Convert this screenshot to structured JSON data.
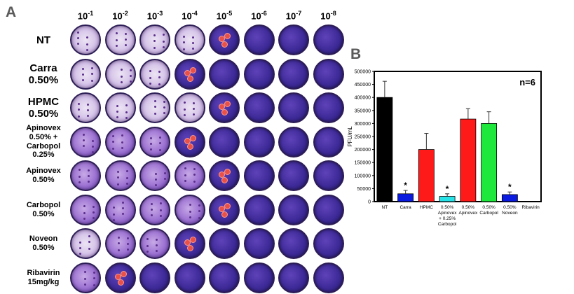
{
  "panel_a": {
    "letter": "A",
    "dilutions": [
      {
        "base": "10",
        "exp": "-1"
      },
      {
        "base": "10",
        "exp": "-2"
      },
      {
        "base": "10",
        "exp": "-3"
      },
      {
        "base": "10",
        "exp": "-4"
      },
      {
        "base": "10",
        "exp": "-5"
      },
      {
        "base": "10",
        "exp": "-6"
      },
      {
        "base": "10",
        "exp": "-7"
      },
      {
        "base": "10",
        "exp": "-8"
      }
    ],
    "rows": [
      {
        "label_lines": [
          "NT"
        ],
        "style": "big",
        "plates": [
          "clear",
          "clear",
          "clear",
          "clear",
          "dense-marked",
          "dense",
          "dense",
          "dense"
        ]
      },
      {
        "label_lines": [
          "Carra",
          "0.50%"
        ],
        "style": "big",
        "plates": [
          "clear",
          "clear",
          "clear",
          "dense-marked",
          "dense",
          "dense",
          "dense",
          "dense"
        ]
      },
      {
        "label_lines": [
          "HPMC",
          "0.50%"
        ],
        "style": "big",
        "plates": [
          "clear",
          "clear",
          "clear",
          "clear",
          "dense-marked",
          "dense",
          "dense",
          "dense"
        ]
      },
      {
        "label_lines": [
          "Apinovex",
          "0.50% +",
          "Carbopol",
          "0.25%"
        ],
        "style": "small",
        "plates": [
          "mixed",
          "mixed",
          "mixed",
          "dense-marked",
          "dense",
          "dense",
          "dense",
          "dense"
        ]
      },
      {
        "label_lines": [
          "Apinovex",
          "0.50%"
        ],
        "style": "small",
        "plates": [
          "mixed",
          "mixed",
          "mixed",
          "mixed",
          "dense-marked",
          "dense",
          "dense",
          "dense"
        ]
      },
      {
        "label_lines": [
          "Carbopol",
          "0.50%"
        ],
        "style": "small",
        "plates": [
          "mixed",
          "mixed",
          "mixed",
          "mixed",
          "dense-marked",
          "dense",
          "dense",
          "dense"
        ]
      },
      {
        "label_lines": [
          "Noveon",
          "0.50%"
        ],
        "style": "small",
        "plates": [
          "clear",
          "mixed",
          "mixed",
          "dense-marked",
          "dense",
          "dense",
          "dense",
          "dense"
        ]
      },
      {
        "label_lines": [
          "Ribavirin",
          "15mg/kg"
        ],
        "style": "small",
        "plates": [
          "mixed",
          "dense-marked",
          "dense",
          "dense",
          "dense",
          "dense",
          "dense",
          "dense"
        ]
      }
    ]
  },
  "panel_b": {
    "letter": "B"
  },
  "chart_data": {
    "type": "bar",
    "annotation": "n=6",
    "ylabel": "PFU/mL",
    "ylim": [
      0,
      500000
    ],
    "yticks": [
      0,
      50000,
      100000,
      150000,
      200000,
      250000,
      300000,
      350000,
      400000,
      450000,
      500000
    ],
    "categories": [
      [
        "NT"
      ],
      [
        "Carra"
      ],
      [
        "HPMC"
      ],
      [
        "0.50%",
        "Apinovex",
        "+ 0.25%",
        "Carbopol"
      ],
      [
        "0.50%",
        "Apinovex"
      ],
      [
        "0.50%",
        "Carbopol"
      ],
      [
        "0.50%",
        "Noveon"
      ],
      [
        "Ribavirin"
      ]
    ],
    "values": [
      400000,
      30000,
      200000,
      20000,
      317000,
      300000,
      27000,
      0
    ],
    "errors": [
      62000,
      13000,
      62000,
      10000,
      40000,
      45000,
      10000,
      0
    ],
    "colors": [
      "#000000",
      "#0b1be0",
      "#ff1a1a",
      "#27e3e8",
      "#ff1a1a",
      "#1ee83c",
      "#0b1be0",
      "#0b1be0"
    ],
    "significance": [
      "",
      "*",
      "",
      "*",
      "",
      "",
      "*",
      ""
    ]
  }
}
